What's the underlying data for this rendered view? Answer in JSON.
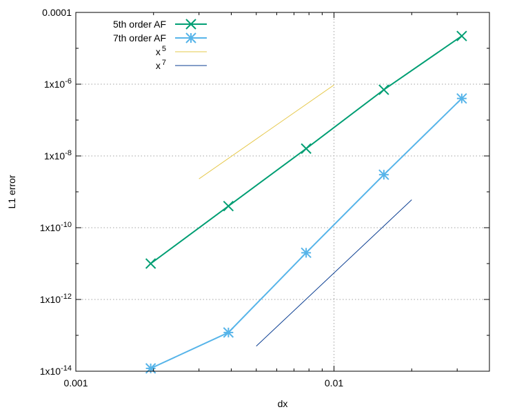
{
  "chart_data": {
    "type": "line",
    "xlabel": "dx",
    "ylabel": "L1 error",
    "xscale": "log",
    "yscale": "log",
    "xlim": [
      0.001,
      0.04
    ],
    "ylim": [
      1e-14,
      0.0001
    ],
    "grid": true,
    "legend_position": "top-left",
    "x_ticks": [
      {
        "value": 0.001,
        "label": "0.001"
      },
      {
        "value": 0.01,
        "label": "0.01"
      }
    ],
    "y_ticks": [
      {
        "value": 1e-14,
        "label": "1x10",
        "exp": "-14"
      },
      {
        "value": 1e-12,
        "label": "1x10",
        "exp": "-12"
      },
      {
        "value": 1e-10,
        "label": "1x10",
        "exp": "-10"
      },
      {
        "value": 1e-08,
        "label": "1x10",
        "exp": "-8"
      },
      {
        "value": 1e-06,
        "label": "1x10",
        "exp": "-6"
      },
      {
        "value": 0.0001,
        "label": "0.0001",
        "exp": ""
      }
    ],
    "series": [
      {
        "name": "5th order AF",
        "color": "#009e73",
        "marker": "x",
        "x": [
          0.00195,
          0.0039,
          0.0078,
          0.0156,
          0.03125
        ],
        "y": [
          1e-11,
          4e-10,
          1.6e-08,
          7e-07,
          2.2e-05
        ]
      },
      {
        "name": "7th order AF",
        "color": "#56b4e9",
        "marker": "star",
        "x": [
          0.00195,
          0.0039,
          0.0078,
          0.0156,
          0.03125
        ],
        "y": [
          1.2e-14,
          1.2e-13,
          2e-11,
          3e-09,
          4e-07
        ]
      },
      {
        "name": "x",
        "name_exp": "5",
        "color": "#e6c84a",
        "marker": "none",
        "x": [
          0.003,
          0.01
        ],
        "y": [
          2.3e-09,
          9.5e-07
        ]
      },
      {
        "name": "x",
        "name_exp": "7",
        "color": "#0a3d91",
        "marker": "none",
        "x": [
          0.005,
          0.02
        ],
        "y": [
          5e-14,
          6e-10
        ]
      }
    ]
  }
}
